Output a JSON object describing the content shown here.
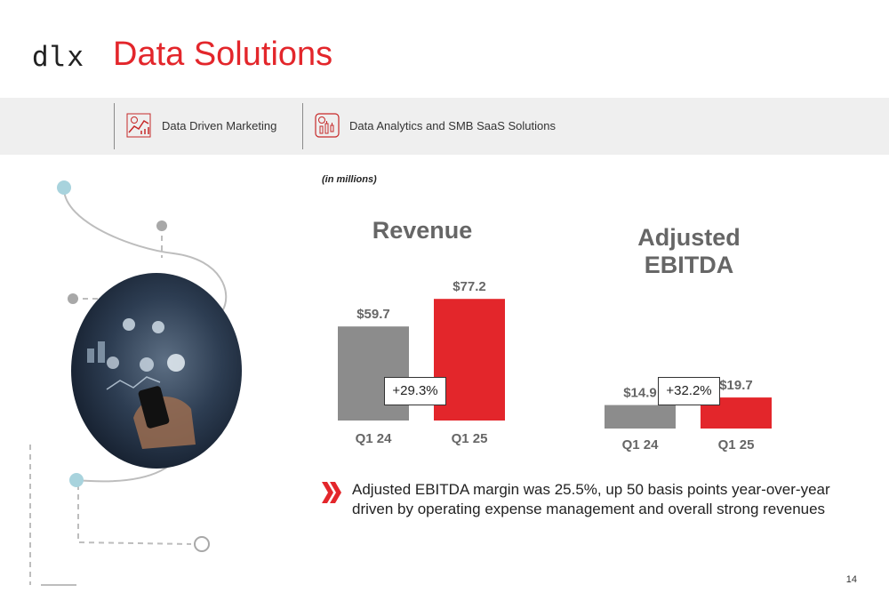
{
  "header": {
    "logo_text": "dlx",
    "title": "Data Solutions"
  },
  "nav": {
    "items": [
      {
        "label": "Data Driven Marketing",
        "icon": "marketing-chart-icon"
      },
      {
        "label": "Data Analytics and SMB SaaS Solutions",
        "icon": "analytics-dashboard-icon"
      }
    ]
  },
  "units_note": "(in millions)",
  "chart_data": [
    {
      "type": "bar",
      "title": "Revenue",
      "categories": [
        "Q1 24",
        "Q1 25"
      ],
      "values": [
        59.7,
        77.2
      ],
      "value_labels": [
        "$59.7",
        "$77.2"
      ],
      "growth_label": "+29.3%",
      "colors": [
        "#8c8c8c",
        "#e3262b"
      ]
    },
    {
      "type": "bar",
      "title": "Adjusted EBITDA",
      "categories": [
        "Q1 24",
        "Q1 25"
      ],
      "values": [
        14.9,
        19.7
      ],
      "value_labels": [
        "$14.9",
        "$19.7"
      ],
      "growth_label": "+32.2%",
      "colors": [
        "#8c8c8c",
        "#e3262b"
      ]
    }
  ],
  "callout": {
    "text": "Adjusted EBITDA margin was 25.5%, up 50 basis points year-over-year driven by operating expense management and overall strong revenues"
  },
  "page_number": "14",
  "colors": {
    "brand_red": "#e3262b",
    "gray_bar": "#8c8c8c",
    "band_bg": "#efefef"
  }
}
